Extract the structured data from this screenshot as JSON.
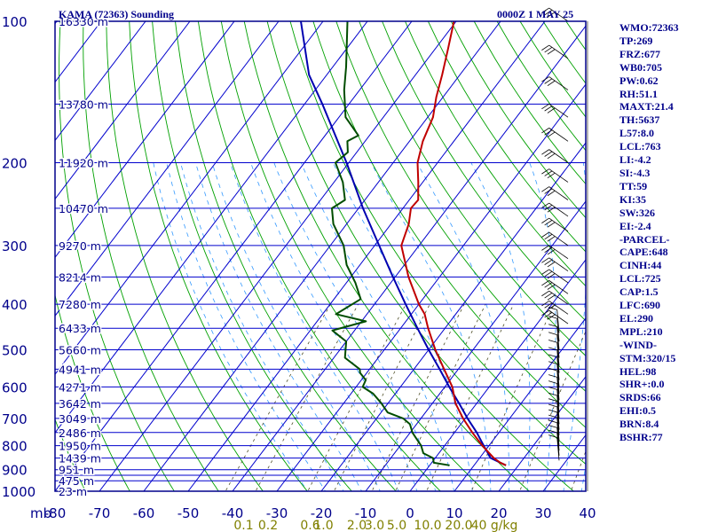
{
  "header": {
    "station": "KAMA (72363) Sounding",
    "time": "0000Z  1 MAY 25"
  },
  "indices": [
    "WMO:72363",
    "TP:269",
    "FRZ:677",
    "WB0:705",
    "PW:0.62",
    "RH:51.1",
    "MAXT:21.4",
    "TH:5637",
    "L57:8.0",
    "LCL:763",
    "LI:-4.2",
    "SI:-4.3",
    "TT:59",
    "KI:35",
    "SW:326",
    "EI:-2.4",
    "-PARCEL-",
    "CAPE:648",
    "CINH:44",
    "LCL:725",
    "CAP:1.5",
    "LFC:690",
    "EL:290",
    "MPL:210",
    "-WIND-",
    "STM:320/15",
    "HEL:98",
    "SHR+:0.0",
    "SRDS:66",
    "EHI:0.5",
    "BRN:8.4",
    "BSHR:77"
  ],
  "colors": {
    "frame": "#00008b",
    "isobar_isotherm": "#0000cd",
    "dry_adiabat": "#00a000",
    "moist_adiabat": "#3399ff",
    "mixing_ratio": "#4d4d26",
    "temperature": "#c00000",
    "dewpoint": "#004d00",
    "parcel": "#0000b0",
    "text": "#00008b",
    "mixing_label": "#808000"
  },
  "chart_data": {
    "type": "skew-t",
    "title": "KAMA (72363) Sounding",
    "valid": "0000Z  1 MAY 25",
    "xlim": [
      -80,
      0
    ],
    "ylim": [
      1000,
      100
    ],
    "x_ticks": [
      -80,
      -70,
      -60,
      -50,
      -40,
      -30,
      -20,
      -10,
      0,
      10,
      20,
      30,
      40
    ],
    "x_tick_labels": [
      "-80",
      "-70",
      "-60",
      "-50",
      "-40",
      "-30",
      "-20",
      "-10",
      "0",
      "10",
      "20",
      "30",
      "40"
    ],
    "x_unit_label": "mb",
    "pressure_ticks": [
      100,
      200,
      300,
      400,
      500,
      600,
      700,
      800,
      900,
      1000
    ],
    "pressure_lines": [
      100,
      150,
      200,
      250,
      300,
      350,
      400,
      450,
      500,
      550,
      600,
      650,
      700,
      750,
      800,
      850,
      900,
      925,
      950,
      1000
    ],
    "height_labels": [
      {
        "p": 100,
        "text": "16330 m"
      },
      {
        "p": 150,
        "text": "13780 m"
      },
      {
        "p": 200,
        "text": "11920 m"
      },
      {
        "p": 250,
        "text": "10470 m"
      },
      {
        "p": 300,
        "text": "9270 m"
      },
      {
        "p": 350,
        "text": "8214 m"
      },
      {
        "p": 400,
        "text": "7280 m"
      },
      {
        "p": 450,
        "text": "6433 m"
      },
      {
        "p": 500,
        "text": "5660 m"
      },
      {
        "p": 550,
        "text": "4941 m"
      },
      {
        "p": 600,
        "text": "4271 m"
      },
      {
        "p": 650,
        "text": "3642 m"
      },
      {
        "p": 700,
        "text": "3049 m"
      },
      {
        "p": 750,
        "text": "2486 m"
      },
      {
        "p": 800,
        "text": "1950 m"
      },
      {
        "p": 850,
        "text": "1439 m"
      },
      {
        "p": 900,
        "text": "951 m"
      },
      {
        "p": 950,
        "text": "475 m"
      },
      {
        "p": 1000,
        "text": "23 m"
      }
    ],
    "mixing_ratio_labels": [
      {
        "t": -37.5,
        "text": "0.1"
      },
      {
        "t": -32,
        "text": "0.2"
      },
      {
        "t": -22.5,
        "text": "0.6"
      },
      {
        "t": -19.5,
        "text": "1.0"
      },
      {
        "t": -12,
        "text": "2.0"
      },
      {
        "t": -8,
        "text": "3.0"
      },
      {
        "t": -3,
        "text": "5.0"
      },
      {
        "t": 4,
        "text": "10.0"
      },
      {
        "t": 11,
        "text": "20.0"
      },
      {
        "t": 19,
        "text": "40 g/kg"
      }
    ],
    "series": [
      {
        "name": "temperature",
        "points": [
          [
            881,
            17.2
          ],
          [
            870,
            15.5
          ],
          [
            850,
            13.2
          ],
          [
            800,
            8.5
          ],
          [
            750,
            4.0
          ],
          [
            700,
            -0.5
          ],
          [
            650,
            -4.8
          ],
          [
            600,
            -8.3
          ],
          [
            550,
            -13.2
          ],
          [
            500,
            -18.5
          ],
          [
            450,
            -23.8
          ],
          [
            420,
            -27.0
          ],
          [
            400,
            -30.0
          ],
          [
            350,
            -37.0
          ],
          [
            300,
            -44.0
          ],
          [
            270,
            -46.0
          ],
          [
            250,
            -48.2
          ],
          [
            240,
            -48.0
          ],
          [
            220,
            -51.0
          ],
          [
            200,
            -54.5
          ],
          [
            180,
            -57.0
          ],
          [
            160,
            -58.8
          ],
          [
            145,
            -61.5
          ],
          [
            130,
            -64.0
          ],
          [
            115,
            -67.0
          ],
          [
            100,
            -70.5
          ]
        ]
      },
      {
        "name": "dewpoint",
        "points": [
          [
            881,
            4.5
          ],
          [
            870,
            0.5
          ],
          [
            850,
            -0.5
          ],
          [
            830,
            -3.5
          ],
          [
            800,
            -5.3
          ],
          [
            770,
            -7.8
          ],
          [
            750,
            -9.5
          ],
          [
            720,
            -11.5
          ],
          [
            700,
            -14.0
          ],
          [
            680,
            -18.5
          ],
          [
            650,
            -21.5
          ],
          [
            620,
            -25.0
          ],
          [
            600,
            -28.5
          ],
          [
            580,
            -29.0
          ],
          [
            560,
            -31.5
          ],
          [
            550,
            -32.2
          ],
          [
            520,
            -37.5
          ],
          [
            480,
            -40.0
          ],
          [
            455,
            -45.0
          ],
          [
            435,
            -39.0
          ],
          [
            420,
            -47.0
          ],
          [
            390,
            -44.0
          ],
          [
            360,
            -48.0
          ],
          [
            330,
            -53.0
          ],
          [
            300,
            -57.0
          ],
          [
            270,
            -63.0
          ],
          [
            250,
            -66.0
          ],
          [
            240,
            -64.5
          ],
          [
            220,
            -68.0
          ],
          [
            200,
            -73.0
          ],
          [
            190,
            -72.0
          ],
          [
            180,
            -74.0
          ],
          [
            175,
            -72.5
          ],
          [
            160,
            -78.5
          ],
          [
            140,
            -83.5
          ],
          [
            125,
            -87.0
          ],
          [
            100,
            -94.5
          ]
        ]
      },
      {
        "name": "parcel",
        "points": [
          [
            881,
            17.2
          ],
          [
            850,
            12.5
          ],
          [
            800,
            8.8
          ],
          [
            750,
            5.0
          ],
          [
            700,
            0.5
          ],
          [
            650,
            -4.0
          ],
          [
            600,
            -9.0
          ],
          [
            550,
            -14.2
          ],
          [
            500,
            -20.0
          ],
          [
            450,
            -26.2
          ],
          [
            400,
            -33.0
          ],
          [
            350,
            -40.5
          ],
          [
            300,
            -49.0
          ],
          [
            250,
            -59.0
          ],
          [
            200,
            -70.5
          ],
          [
            150,
            -86.0
          ],
          [
            130,
            -94.0
          ],
          [
            100,
            -105.0
          ]
        ]
      }
    ]
  }
}
